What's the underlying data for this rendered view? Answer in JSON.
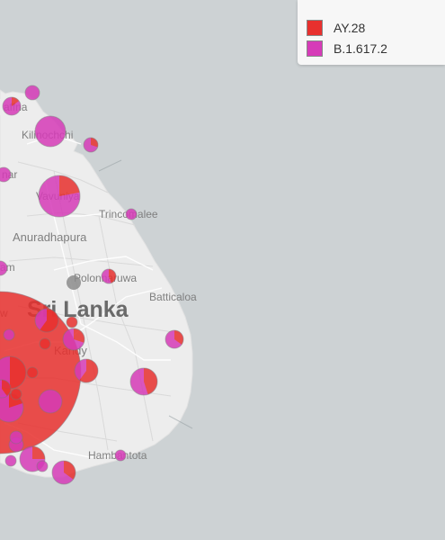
{
  "legend": {
    "items": [
      {
        "label": "AY.28",
        "color": "#e8302e"
      },
      {
        "label": "B.1.617.2",
        "color": "#d63bb8"
      }
    ]
  },
  "map": {
    "country_label": "Sri Lanka",
    "places": {
      "jaffna": "affna",
      "kilinochchi": "Kilinochchi",
      "mannar": "nar",
      "vavuniya": "Vavuniya",
      "trincomalee": "Trincomalee",
      "anuradhapura": "Anuradhapura",
      "puttalam": "am",
      "polonnaruwa": "Polonnaruwa",
      "batticaloa": "Batticaloa",
      "kandy": "Kandy",
      "colombo": "w",
      "hambantota": "Hambantota"
    }
  },
  "markers": [
    {
      "location": "northwest",
      "ay28": 0.15
    },
    {
      "location": "northwest-2",
      "ay28": 0.0
    },
    {
      "location": "jaffna",
      "ay28": 0.0
    },
    {
      "location": "kilinochchi",
      "ay28": 0.0
    },
    {
      "location": "east-of-kilinochchi",
      "ay28": 0.3
    },
    {
      "location": "mannar",
      "ay28": 0.0
    },
    {
      "location": "vavuniya",
      "ay28": 0.22
    },
    {
      "location": "trincomalee",
      "ay28": 0.0
    },
    {
      "location": "puttalam",
      "ay28": 0.0
    },
    {
      "location": "polonnaruwa",
      "ay28": 0.45
    },
    {
      "location": "polonnaruwa-grey",
      "ay28": 0.0
    },
    {
      "location": "matale",
      "ay28": 1.0
    },
    {
      "location": "batticaloa",
      "ay28": 0.35
    },
    {
      "location": "colombo",
      "ay28": 0.85
    },
    {
      "location": "kurunegala",
      "ay28": 0.6
    },
    {
      "location": "kandy",
      "ay28": 0.3
    },
    {
      "location": "badulla",
      "ay28": 0.6
    },
    {
      "location": "ampara",
      "ay28": 0.45
    },
    {
      "location": "west-1",
      "ay28": 1.0
    },
    {
      "location": "west-2",
      "ay28": 0.0
    },
    {
      "location": "west-3",
      "ay28": 0.5
    },
    {
      "location": "west-4",
      "ay28": 1.0
    },
    {
      "location": "west-5",
      "ay28": 0.0
    },
    {
      "location": "west-6",
      "ay28": 0.2
    },
    {
      "location": "west-7",
      "ay28": 0.4
    },
    {
      "location": "west-8",
      "ay28": 1.0
    },
    {
      "location": "ratnapura",
      "ay28": 0.0
    },
    {
      "location": "galle-1",
      "ay28": 0.0
    },
    {
      "location": "galle-2",
      "ay28": 0.0
    },
    {
      "location": "galle-3",
      "ay28": 0.0
    },
    {
      "location": "south-1",
      "ay28": 0.25
    },
    {
      "location": "south-2",
      "ay28": 0.0
    },
    {
      "location": "matara",
      "ay28": 0.35
    },
    {
      "location": "hambantota",
      "ay28": 0.0
    }
  ]
}
